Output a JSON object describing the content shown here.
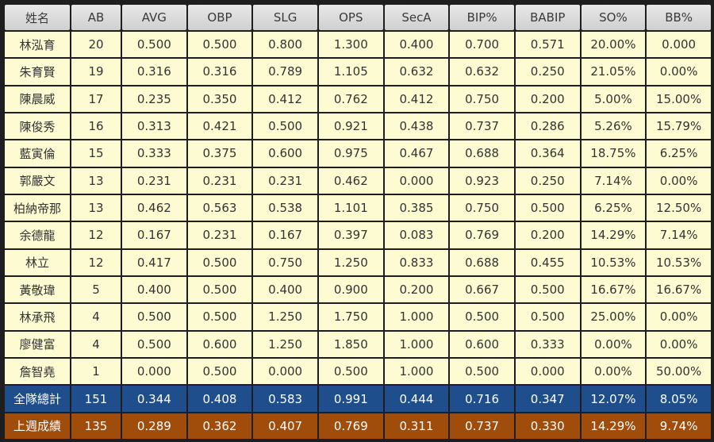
{
  "columns": [
    "姓名",
    "AB",
    "AVG",
    "OBP",
    "SLG",
    "OPS",
    "SecA",
    "BIP%",
    "BABIP",
    "SO%",
    "BB%"
  ],
  "players": [
    [
      "林泓育",
      "20",
      "0.500",
      "0.500",
      "0.800",
      "1.300",
      "0.400",
      "0.700",
      "0.571",
      "20.00%",
      "0.000"
    ],
    [
      "朱育賢",
      "19",
      "0.316",
      "0.316",
      "0.789",
      "1.105",
      "0.632",
      "0.632",
      "0.250",
      "21.05%",
      "0.00%"
    ],
    [
      "陳晨威",
      "17",
      "0.235",
      "0.350",
      "0.412",
      "0.762",
      "0.412",
      "0.750",
      "0.200",
      "5.00%",
      "15.00%"
    ],
    [
      "陳俊秀",
      "16",
      "0.313",
      "0.421",
      "0.500",
      "0.921",
      "0.438",
      "0.737",
      "0.286",
      "5.26%",
      "15.79%"
    ],
    [
      "藍寅倫",
      "15",
      "0.333",
      "0.375",
      "0.600",
      "0.975",
      "0.467",
      "0.688",
      "0.364",
      "18.75%",
      "6.25%"
    ],
    [
      "郭嚴文",
      "13",
      "0.231",
      "0.231",
      "0.231",
      "0.462",
      "0.000",
      "0.923",
      "0.250",
      "7.14%",
      "0.00%"
    ],
    [
      "柏納帝那",
      "13",
      "0.462",
      "0.563",
      "0.538",
      "1.101",
      "0.385",
      "0.750",
      "0.500",
      "6.25%",
      "12.50%"
    ],
    [
      "余德龍",
      "12",
      "0.167",
      "0.231",
      "0.167",
      "0.397",
      "0.083",
      "0.769",
      "0.200",
      "14.29%",
      "7.14%"
    ],
    [
      "林立",
      "12",
      "0.417",
      "0.500",
      "0.750",
      "1.250",
      "0.833",
      "0.688",
      "0.455",
      "10.53%",
      "10.53%"
    ],
    [
      "黃敬瑋",
      "5",
      "0.400",
      "0.500",
      "0.400",
      "0.900",
      "0.200",
      "0.667",
      "0.500",
      "16.67%",
      "16.67%"
    ],
    [
      "林承飛",
      "4",
      "0.500",
      "0.500",
      "1.250",
      "1.750",
      "1.000",
      "0.500",
      "0.500",
      "25.00%",
      "0.00%"
    ],
    [
      "廖健富",
      "4",
      "0.500",
      "0.600",
      "1.250",
      "1.850",
      "1.000",
      "0.600",
      "0.333",
      "0.00%",
      "0.00%"
    ],
    [
      "詹智堯",
      "1",
      "0.000",
      "0.500",
      "0.000",
      "0.500",
      "1.000",
      "0.500",
      "0.000",
      "0.00%",
      "50.00%"
    ]
  ],
  "team_total": [
    "全隊總計",
    "151",
    "0.344",
    "0.408",
    "0.583",
    "0.991",
    "0.444",
    "0.716",
    "0.347",
    "12.07%",
    "8.05%"
  ],
  "last_week": [
    "上週成績",
    "135",
    "0.289",
    "0.362",
    "0.407",
    "0.769",
    "0.311",
    "0.737",
    "0.330",
    "14.29%",
    "9.74%"
  ],
  "colors": {
    "header_bg": "#d8d8d8",
    "row_bg": "#fdfbd2",
    "total_bg": "#1f4e8c",
    "lastweek_bg": "#a04d0c"
  }
}
